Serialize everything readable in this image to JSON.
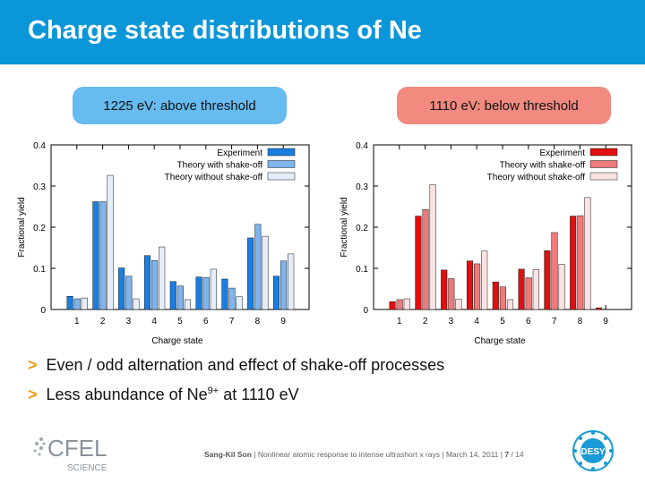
{
  "slide": {
    "title": "Charge state distributions of Ne",
    "left_label": "1225 eV: above threshold",
    "right_label": "1110 eV: below threshold",
    "bullets": [
      {
        "marker": ">",
        "text_before": "Even / odd alternation and effect of shake-off processes",
        "sup": "",
        "text_after": ""
      },
      {
        "marker": ">",
        "text_before": "Less abundance of Ne",
        "sup": "9+",
        "text_after": " at 1110 eV"
      }
    ],
    "footer": {
      "author": "Sang-Kil Son",
      "talk": "Nonlinear atomic response to intense ultrashort x rays",
      "date": "March 14, 2011",
      "page": "7",
      "total": "14",
      "cfel_logo": "CFEL",
      "cfel_sub": "SCIENCE",
      "desy_logo": "DESY"
    }
  },
  "chart_data": [
    {
      "type": "bar",
      "categories": [
        "1",
        "2",
        "3",
        "4",
        "5",
        "6",
        "7",
        "8",
        "9"
      ],
      "xlabel": "Charge state",
      "ylabel": "Fractional yield",
      "ylim": [
        0,
        0.4
      ],
      "yticks": [
        "0",
        "0.1",
        "0.2",
        "0.3",
        "0.4"
      ],
      "legend": "top-right",
      "series": [
        {
          "name": "Experiment",
          "color": "#1a7de0",
          "values": [
            0.032,
            0.262,
            0.101,
            0.131,
            0.068,
            0.079,
            0.074,
            0.174,
            0.081
          ]
        },
        {
          "name": "Theory with shake-off",
          "color": "#7fb4ee",
          "values": [
            0.026,
            0.262,
            0.081,
            0.119,
            0.057,
            0.078,
            0.052,
            0.207,
            0.118
          ]
        },
        {
          "name": "Theory without shake-off",
          "color": "#e3eefa",
          "values": [
            0.028,
            0.326,
            0.026,
            0.152,
            0.024,
            0.098,
            0.031,
            0.178,
            0.135
          ]
        }
      ]
    },
    {
      "type": "bar",
      "categories": [
        "1",
        "2",
        "3",
        "4",
        "5",
        "6",
        "7",
        "8",
        "9"
      ],
      "xlabel": "Charge state",
      "ylabel": "Fractional yield",
      "ylim": [
        0,
        0.4
      ],
      "yticks": [
        "0",
        "0.1",
        "0.2",
        "0.3",
        "0.4"
      ],
      "legend": "top-right",
      "series": [
        {
          "name": "Experiment",
          "color": "#e01010",
          "values": [
            0.019,
            0.227,
            0.096,
            0.118,
            0.067,
            0.098,
            0.143,
            0.227,
            0.004
          ]
        },
        {
          "name": "Theory with shake-off",
          "color": "#ee7a7a",
          "values": [
            0.024,
            0.243,
            0.075,
            0.111,
            0.055,
            0.077,
            0.187,
            0.228,
            0.0
          ]
        },
        {
          "name": "Theory without shake-off",
          "color": "#fbe2e2",
          "values": [
            0.026,
            0.303,
            0.025,
            0.142,
            0.024,
            0.097,
            0.11,
            0.272,
            0.0
          ]
        }
      ]
    }
  ]
}
